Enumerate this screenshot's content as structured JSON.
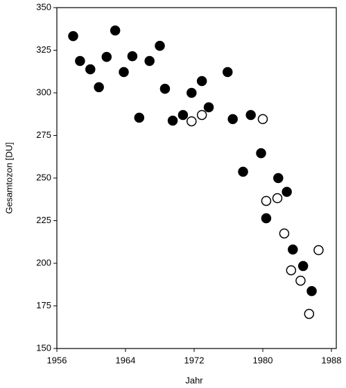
{
  "chart_data": {
    "type": "scatter",
    "x_label": "Jahr",
    "y_label": "Gesamtozon [DU]",
    "xlim": [
      1956,
      1988
    ],
    "xticks": [
      1956,
      1964,
      1972,
      1980,
      1988
    ],
    "ylim": [
      150,
      350
    ],
    "yticks": [
      150,
      175,
      200,
      225,
      250,
      275,
      300,
      325,
      350
    ],
    "series": [
      {
        "color": "#000000",
        "fill": "#000000",
        "x": [
          1957.9,
          1958.7,
          1959.9,
          1960.9,
          1961.8,
          1962.8,
          1963.8,
          1964.8,
          1965.6,
          1966.8,
          1968.0,
          1968.6,
          1969.5,
          1970.7,
          1971.7,
          1972.9,
          1973.7,
          1975.9,
          1976.5,
          1978.6,
          1977.7,
          1979.8,
          1980.4,
          1981.8,
          1982.8,
          1983.5,
          1984.7,
          1985.7
        ],
        "values": [
          333.3,
          318.7,
          313.8,
          303.3,
          321.1,
          336.6,
          312.2,
          321.5,
          285.4,
          318.7,
          327.6,
          302.4,
          283.7,
          287.0,
          300.0,
          306.9,
          291.5,
          312.2,
          284.6,
          287.0,
          253.7,
          264.6,
          226.4,
          250.0,
          241.9,
          208.1,
          198.4,
          183.7
        ]
      },
      {
        "color": "#000000",
        "fill": "#ffffff",
        "x": [
          1971.7,
          1972.9,
          1980.0,
          1980.4,
          1981.7,
          1982.5,
          1983.3,
          1984.4,
          1985.4,
          1986.5
        ],
        "values": [
          283.3,
          287.0,
          284.6,
          236.6,
          238.2,
          217.5,
          195.9,
          189.8,
          170.3,
          207.7
        ]
      }
    ]
  }
}
